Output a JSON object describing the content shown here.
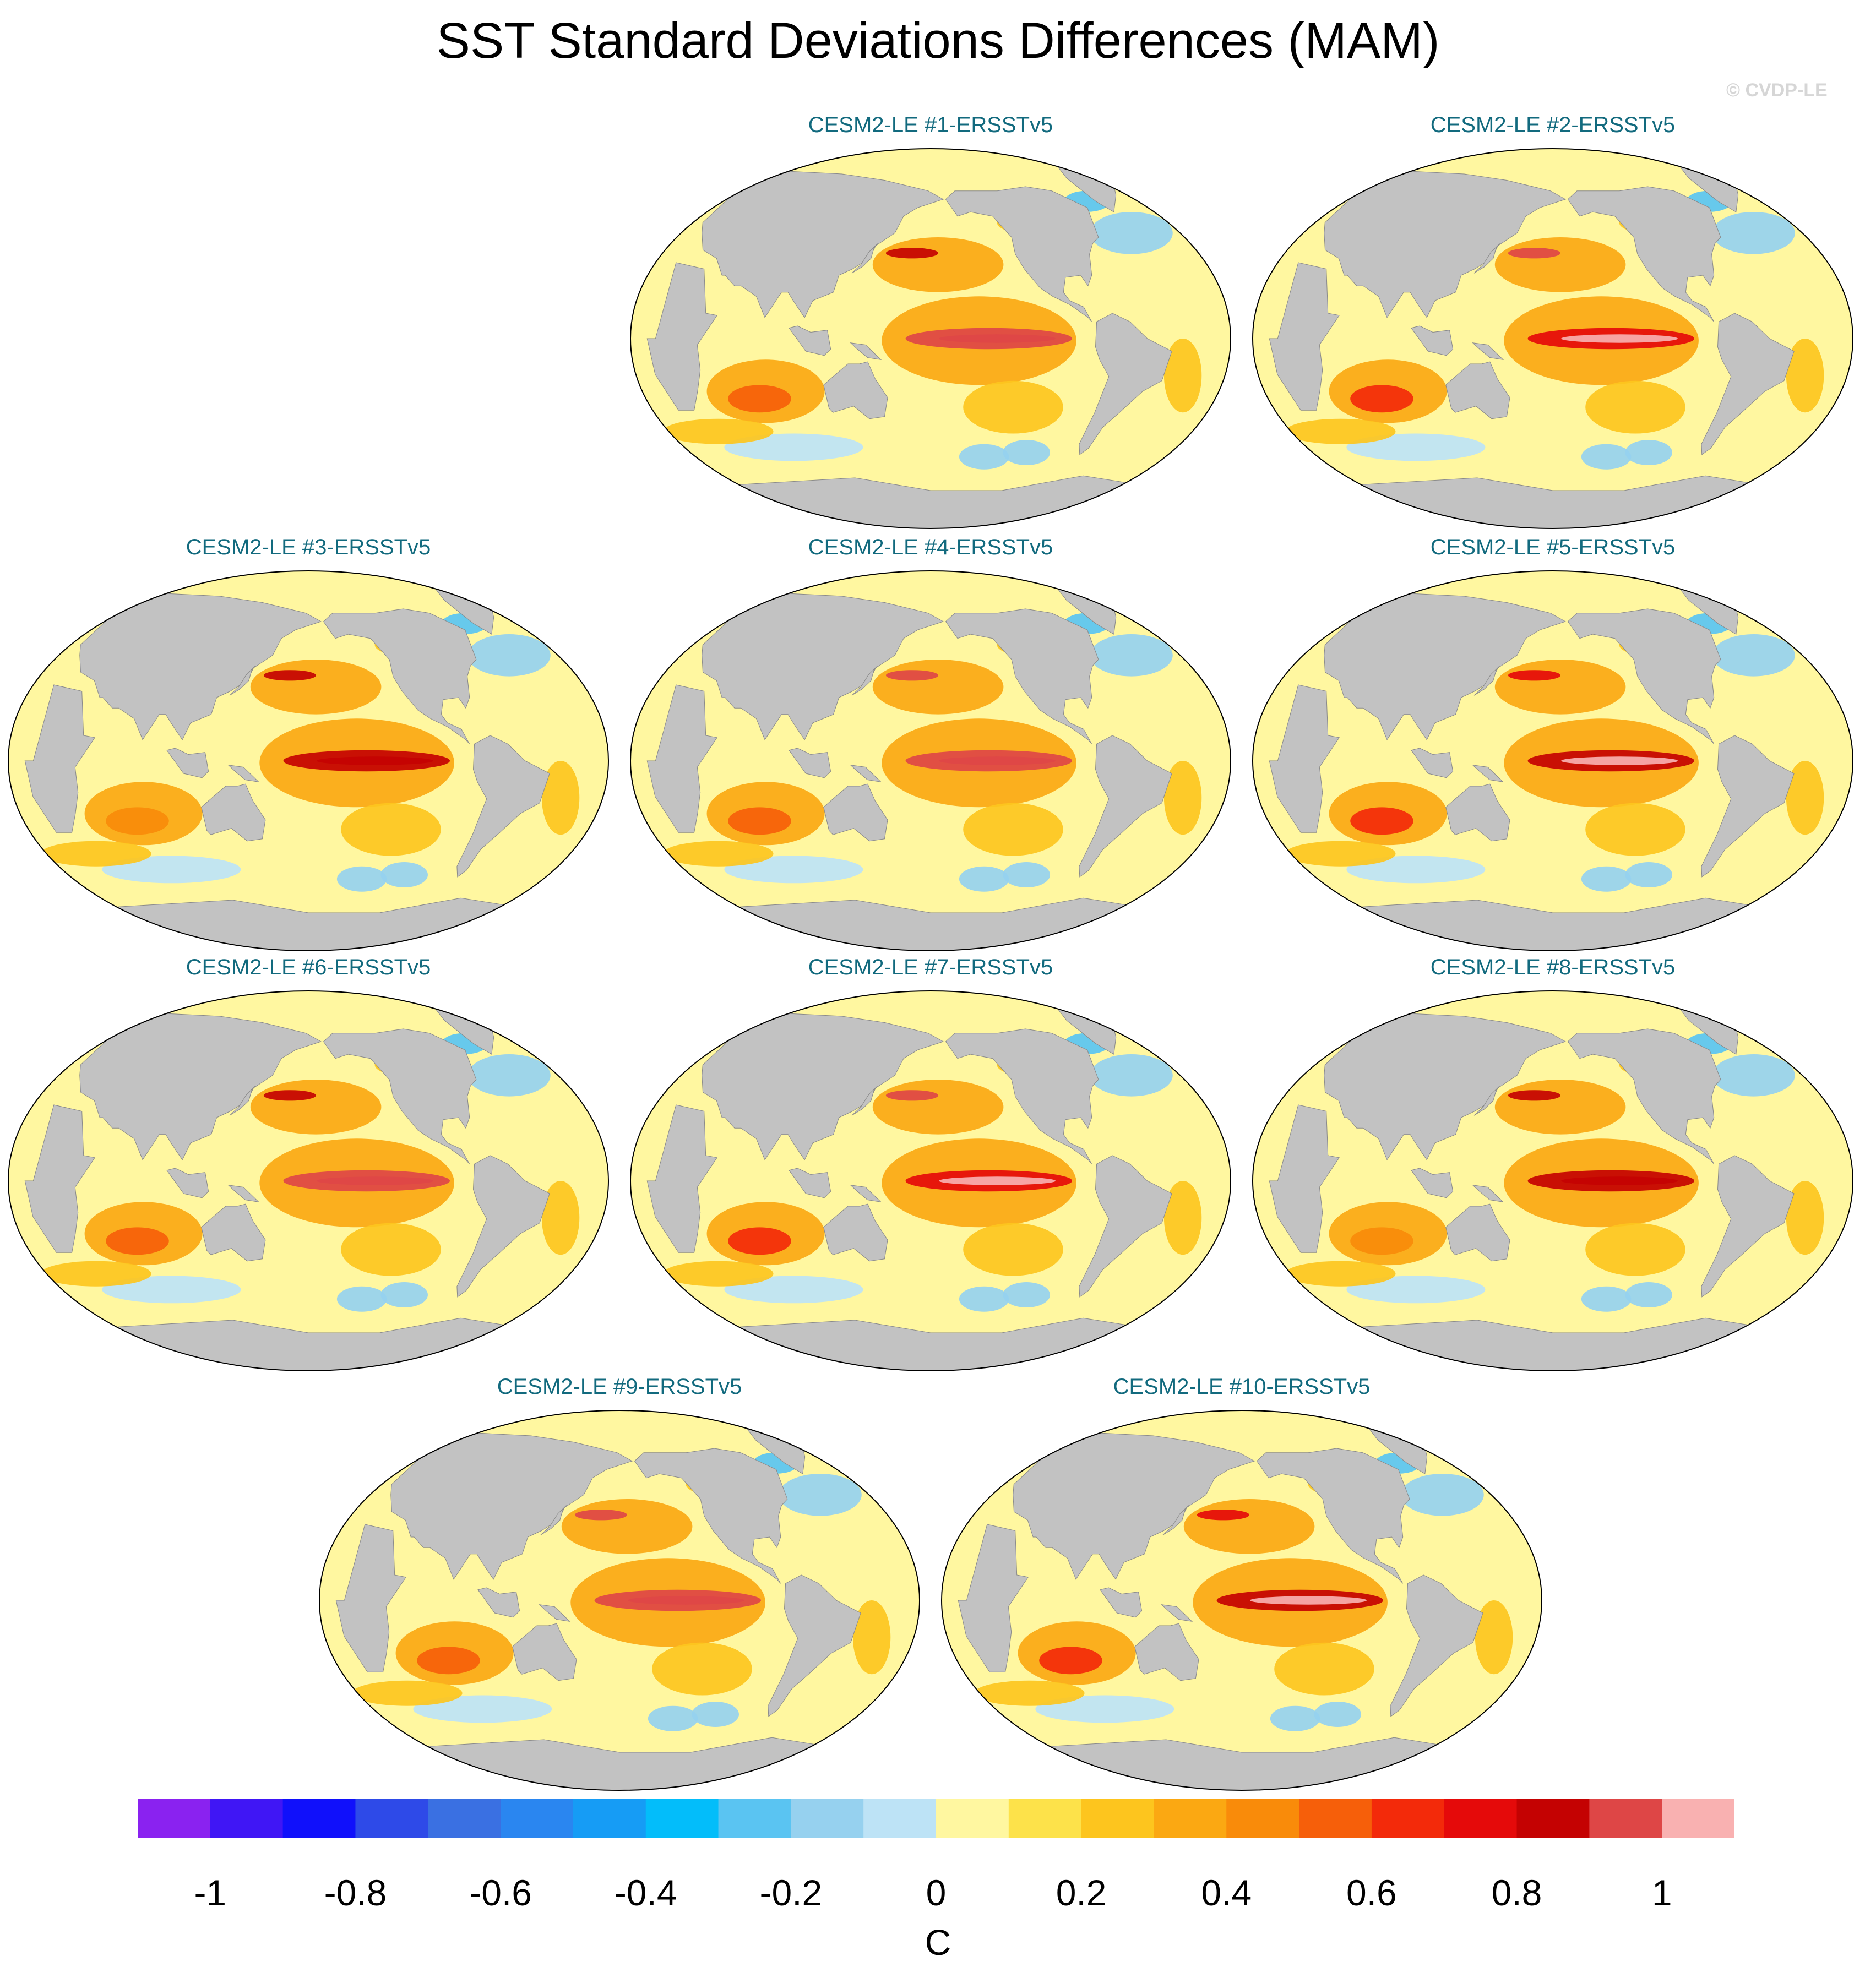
{
  "title": "SST Standard Deviations Differences (MAM)",
  "credit": "© CVDP-LE",
  "panels": [
    {
      "title": "CESM2-LE #1-ERSSTv5"
    },
    {
      "title": "CESM2-LE #2-ERSSTv5"
    },
    {
      "title": "CESM2-LE #3-ERSSTv5"
    },
    {
      "title": "CESM2-LE #4-ERSSTv5"
    },
    {
      "title": "CESM2-LE #5-ERSSTv5"
    },
    {
      "title": "CESM2-LE #6-ERSSTv5"
    },
    {
      "title": "CESM2-LE #7-ERSSTv5"
    },
    {
      "title": "CESM2-LE #8-ERSSTv5"
    },
    {
      "title": "CESM2-LE #9-ERSSTv5"
    },
    {
      "title": "CESM2-LE #10-ERSSTv5"
    }
  ],
  "colorbar": {
    "units": "C",
    "min": -1.1,
    "max": 1.1,
    "step": 0.1,
    "tick_values": [
      -1,
      -0.8,
      -0.6,
      -0.4,
      -0.2,
      0,
      0.2,
      0.4,
      0.6,
      0.8,
      1
    ],
    "tick_labels": [
      "-1",
      "-0.8",
      "-0.6",
      "-0.4",
      "-0.2",
      "0",
      "0.2",
      "0.4",
      "0.6",
      "0.8",
      "1"
    ],
    "colors": [
      "#8a22f0",
      "#4016f5",
      "#1010fb",
      "#2e4ae8",
      "#3a70e2",
      "#2a86f0",
      "#169cf5",
      "#03bdfa",
      "#5ac4f2",
      "#96d1ef",
      "#bde3f6",
      "#fff7a0",
      "#fde24a",
      "#fdc51e",
      "#fba812",
      "#f98b0a",
      "#f65f0a",
      "#f32a0a",
      "#e50a0a",
      "#c40202",
      "#de4646",
      "#f9b1b1"
    ]
  },
  "colors": {
    "land": "#c2c2c2",
    "ocean_base": "#fff7a0",
    "panel_title": "#126a7e"
  }
}
